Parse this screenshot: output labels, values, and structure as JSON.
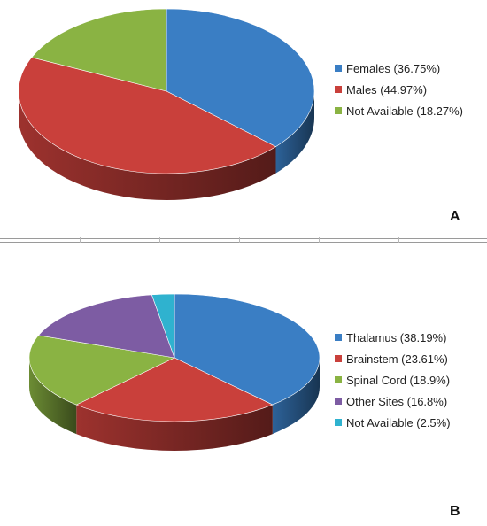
{
  "chart_data": [
    {
      "type": "pie",
      "style": "3d",
      "panel_label": "A",
      "legend_position": "right",
      "slices": [
        {
          "label": "Females (36.75%)",
          "value": 36.75,
          "color": "#3a7ec4"
        },
        {
          "label": "Males (44.97%)",
          "value": 44.97,
          "color": "#c9403b"
        },
        {
          "label": "Not Available (18.27%)",
          "value": 18.27,
          "color": "#8ab343"
        }
      ]
    },
    {
      "type": "pie",
      "style": "3d",
      "panel_label": "B",
      "legend_position": "right",
      "slices": [
        {
          "label": "Thalamus (38.19%)",
          "value": 38.19,
          "color": "#3a7ec4"
        },
        {
          "label": "Brainstem (23.61%)",
          "value": 23.61,
          "color": "#c9403b"
        },
        {
          "label": "Spinal Cord (18.9%)",
          "value": 18.9,
          "color": "#8ab343"
        },
        {
          "label": "Other Sites (16.8%)",
          "value": 16.8,
          "color": "#7d5ca3"
        },
        {
          "label": "Not Available (2.5%)",
          "value": 2.5,
          "color": "#2fb2cf"
        }
      ]
    }
  ]
}
